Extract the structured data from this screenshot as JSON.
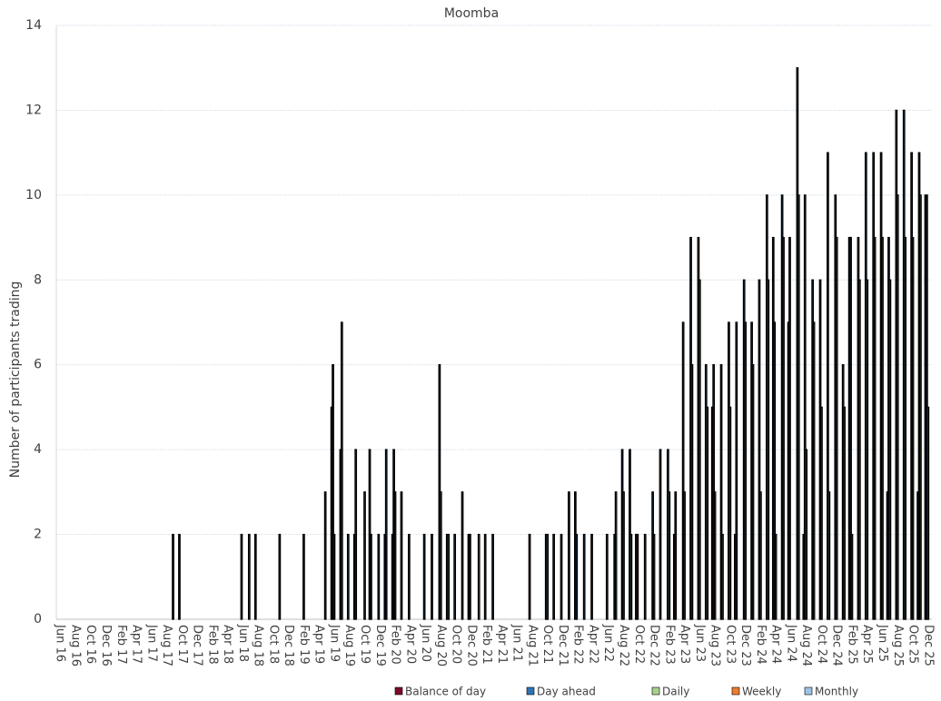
{
  "chart_data": {
    "type": "bar",
    "title": "Moomba",
    "y_label": "Number of participants trading",
    "categories": [
      "Jun 16",
      null,
      "Aug 16",
      null,
      "Oct 16",
      null,
      "Dec 16",
      null,
      "Feb 17",
      null,
      "Apr 17",
      null,
      "Jun 17",
      null,
      "Aug 17",
      null,
      "Oct 17",
      null,
      "Dec 17",
      null,
      "Feb 18",
      null,
      "Apr 18",
      null,
      "Jun 18",
      null,
      "Aug 18",
      null,
      "Oct 18",
      null,
      "Dec 18",
      null,
      "Feb 19",
      null,
      "Apr 19",
      null,
      "Jun 19",
      null,
      "Aug 19",
      null,
      "Oct 19",
      null,
      "Dec 19",
      null,
      "Feb 20",
      null,
      "Apr 20",
      null,
      "Jun 20",
      null,
      "Aug 20",
      null,
      "Oct 20",
      null,
      "Dec 20",
      null,
      "Feb 21",
      null,
      "Apr 21",
      null,
      "Jun 21",
      null,
      "Aug 21",
      null,
      "Oct 21",
      null,
      "Dec 21",
      null,
      "Feb 22",
      null,
      "Apr 22",
      null,
      "Jun 22",
      null,
      "Aug 22",
      null,
      "Oct 22",
      null,
      "Dec 22",
      null,
      "Feb 23",
      null,
      "Apr 23",
      null,
      "Jun 23",
      null,
      "Aug 23",
      null,
      "Oct 23",
      null,
      "Dec 23",
      null,
      "Feb 24",
      null,
      "Apr 24",
      null,
      "Jun 24",
      null,
      "Aug 24",
      null,
      "Oct 24",
      null,
      "Dec 24",
      null,
      "Feb 25",
      null,
      "Apr 25",
      null,
      "Jun 25",
      null,
      "Aug 25",
      null,
      "Oct 25",
      null,
      "Dec 25"
    ],
    "series": [
      {
        "name": "Balance of day",
        "color": "#7b0a2a",
        "values": [
          0,
          0,
          0,
          0,
          0,
          0,
          0,
          0,
          0,
          0,
          0,
          0,
          0,
          0,
          0,
          0,
          2,
          0,
          0,
          0,
          0,
          0,
          0,
          0,
          0,
          0,
          2,
          0,
          0,
          0,
          0,
          0,
          0,
          0,
          0,
          0,
          5,
          0,
          0,
          2,
          0,
          4,
          0,
          2,
          2,
          0,
          0,
          0,
          0,
          0,
          0,
          0,
          0,
          0,
          2,
          0,
          0,
          0,
          0,
          0,
          0,
          0,
          2,
          0,
          0,
          0,
          0,
          0,
          3,
          0,
          0,
          0,
          0,
          0,
          0,
          0,
          2,
          0,
          0,
          0,
          0,
          2,
          0,
          0,
          0,
          0,
          5,
          0,
          0,
          2,
          0,
          0,
          0,
          0,
          9,
          0,
          7,
          0,
          2,
          0,
          0,
          0,
          0,
          0,
          9,
          0,
          0,
          0,
          0,
          3,
          0,
          0,
          0,
          3,
          10
        ]
      },
      {
        "name": "Day ahead",
        "color": "#2e75b6",
        "values": [
          0,
          0,
          0,
          0,
          0,
          0,
          0,
          0,
          0,
          0,
          0,
          0,
          0,
          0,
          0,
          2,
          0,
          0,
          0,
          0,
          0,
          0,
          0,
          0,
          2,
          2,
          0,
          0,
          0,
          2,
          0,
          0,
          0,
          0,
          0,
          3,
          6,
          4,
          2,
          4,
          0,
          2,
          2,
          4,
          4,
          3,
          2,
          0,
          2,
          2,
          6,
          2,
          2,
          3,
          2,
          0,
          2,
          2,
          0,
          0,
          0,
          0,
          0,
          0,
          2,
          2,
          2,
          3,
          2,
          2,
          2,
          0,
          2,
          2,
          4,
          4,
          2,
          2,
          3,
          4,
          4,
          3,
          7,
          9,
          9,
          6,
          6,
          6,
          7,
          7,
          8,
          7,
          8,
          10,
          7,
          10,
          9,
          13,
          10,
          8,
          8,
          11,
          10,
          6,
          9,
          9,
          11,
          11,
          11,
          9,
          12,
          12,
          11,
          11,
          10
        ]
      },
      {
        "name": "Daily",
        "color": "#a9d18e",
        "values": [
          0,
          0,
          0,
          0,
          0,
          0,
          0,
          0,
          0,
          0,
          0,
          0,
          0,
          0,
          0,
          0,
          0,
          0,
          0,
          0,
          0,
          0,
          0,
          0,
          0,
          0,
          0,
          0,
          0,
          0,
          0,
          0,
          2,
          0,
          0,
          0,
          2,
          7,
          0,
          0,
          3,
          0,
          0,
          0,
          3,
          0,
          0,
          0,
          0,
          0,
          3,
          2,
          0,
          0,
          0,
          2,
          0,
          0,
          0,
          0,
          0,
          0,
          0,
          0,
          2,
          0,
          0,
          0,
          0,
          0,
          0,
          0,
          0,
          3,
          3,
          2,
          0,
          0,
          2,
          0,
          3,
          0,
          3,
          6,
          8,
          5,
          3,
          2,
          5,
          0,
          7,
          6,
          3,
          8,
          2,
          9,
          0,
          10,
          4,
          7,
          5,
          3,
          9,
          5,
          2,
          8,
          8,
          9,
          9,
          8,
          10,
          9,
          9,
          10,
          5
        ]
      },
      {
        "name": "Weekly",
        "color": "#ed7d31",
        "values": [
          0,
          0,
          0,
          0,
          0,
          0,
          0,
          0,
          0,
          0,
          0,
          0,
          0,
          0,
          0,
          0,
          0,
          0,
          0,
          0,
          0,
          0,
          0,
          0,
          0,
          0,
          0,
          0,
          0,
          0,
          0,
          0,
          0,
          0,
          0,
          0,
          0,
          0,
          0,
          0,
          0,
          0,
          0,
          0,
          0,
          0,
          0,
          0,
          0,
          0,
          0,
          0,
          0,
          0,
          0,
          0,
          0,
          0,
          0,
          0,
          0,
          0,
          0,
          0,
          0,
          0,
          0,
          0,
          0,
          0,
          0,
          0,
          0,
          0,
          0,
          0,
          0,
          0,
          0,
          0,
          0,
          0,
          0,
          0,
          0,
          0,
          0,
          0,
          0,
          0,
          0,
          0,
          0,
          0,
          0,
          0,
          0,
          0,
          0,
          0,
          0,
          0,
          0,
          0,
          0,
          0,
          0,
          0,
          0,
          0,
          0,
          0,
          0,
          0,
          0
        ]
      },
      {
        "name": "Monthly",
        "color": "#9dc3e6",
        "values": [
          0,
          0,
          0,
          0,
          0,
          0,
          0,
          0,
          0,
          0,
          0,
          0,
          0,
          0,
          0,
          0,
          0,
          0,
          0,
          0,
          0,
          0,
          0,
          0,
          0,
          0,
          0,
          0,
          0,
          0,
          0,
          0,
          0,
          0,
          0,
          0,
          0,
          0,
          0,
          0,
          0,
          0,
          0,
          0,
          0,
          0,
          0,
          0,
          0,
          0,
          0,
          0,
          0,
          0,
          0,
          0,
          0,
          0,
          0,
          0,
          0,
          0,
          0,
          0,
          0,
          0,
          0,
          0,
          0,
          0,
          0,
          0,
          0,
          0,
          0,
          0,
          0,
          0,
          0,
          0,
          0,
          0,
          0,
          0,
          0,
          0,
          0,
          0,
          0,
          0,
          0,
          0,
          0,
          0,
          0,
          0,
          0,
          0,
          0,
          0,
          0,
          0,
          0,
          0,
          0,
          0,
          0,
          0,
          0,
          0,
          0,
          0,
          0,
          0,
          0
        ]
      }
    ],
    "ylim": [
      0,
      14
    ],
    "yticks": [
      0,
      2,
      4,
      6,
      8,
      10,
      12,
      14
    ],
    "grid": true,
    "legend": "bottom"
  }
}
